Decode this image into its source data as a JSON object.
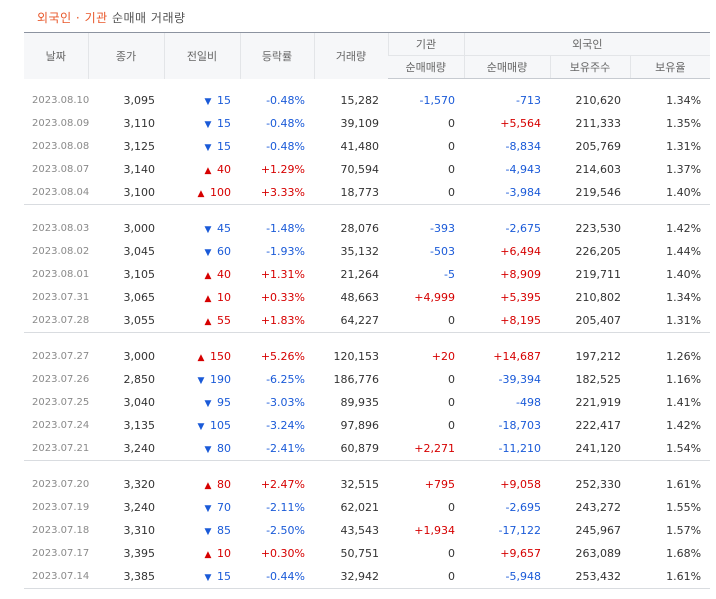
{
  "title": {
    "part1": "외국인 · 기관",
    "part2": " 순매매 거래량"
  },
  "headers": {
    "date": "날짜",
    "close": "종가",
    "change": "전일비",
    "rate": "등락률",
    "volume": "거래량",
    "inst_group": "기관",
    "foreign_group": "외국인",
    "inst_net": "순매매량",
    "foreign_net": "순매매량",
    "holdings": "보유주수",
    "ratio": "보유율"
  },
  "colors": {
    "up": "#d60000",
    "down": "#1a5ad8",
    "neutral": "#333333"
  },
  "groups": [
    [
      {
        "date": "2023.08.10",
        "close": "3,095",
        "dir": "down",
        "change": "15",
        "rate": "-0.48%",
        "volume": "15,282",
        "inst": "-1,570",
        "foreign": "-713",
        "holdings": "210,620",
        "ratio": "1.34%"
      },
      {
        "date": "2023.08.09",
        "close": "3,110",
        "dir": "down",
        "change": "15",
        "rate": "-0.48%",
        "volume": "39,109",
        "inst": "0",
        "foreign": "+5,564",
        "holdings": "211,333",
        "ratio": "1.35%"
      },
      {
        "date": "2023.08.08",
        "close": "3,125",
        "dir": "down",
        "change": "15",
        "rate": "-0.48%",
        "volume": "41,480",
        "inst": "0",
        "foreign": "-8,834",
        "holdings": "205,769",
        "ratio": "1.31%"
      },
      {
        "date": "2023.08.07",
        "close": "3,140",
        "dir": "up",
        "change": "40",
        "rate": "+1.29%",
        "volume": "70,594",
        "inst": "0",
        "foreign": "-4,943",
        "holdings": "214,603",
        "ratio": "1.37%"
      },
      {
        "date": "2023.08.04",
        "close": "3,100",
        "dir": "up",
        "change": "100",
        "rate": "+3.33%",
        "volume": "18,773",
        "inst": "0",
        "foreign": "-3,984",
        "holdings": "219,546",
        "ratio": "1.40%"
      }
    ],
    [
      {
        "date": "2023.08.03",
        "close": "3,000",
        "dir": "down",
        "change": "45",
        "rate": "-1.48%",
        "volume": "28,076",
        "inst": "-393",
        "foreign": "-2,675",
        "holdings": "223,530",
        "ratio": "1.42%"
      },
      {
        "date": "2023.08.02",
        "close": "3,045",
        "dir": "down",
        "change": "60",
        "rate": "-1.93%",
        "volume": "35,132",
        "inst": "-503",
        "foreign": "+6,494",
        "holdings": "226,205",
        "ratio": "1.44%"
      },
      {
        "date": "2023.08.01",
        "close": "3,105",
        "dir": "up",
        "change": "40",
        "rate": "+1.31%",
        "volume": "21,264",
        "inst": "-5",
        "foreign": "+8,909",
        "holdings": "219,711",
        "ratio": "1.40%"
      },
      {
        "date": "2023.07.31",
        "close": "3,065",
        "dir": "up",
        "change": "10",
        "rate": "+0.33%",
        "volume": "48,663",
        "inst": "+4,999",
        "foreign": "+5,395",
        "holdings": "210,802",
        "ratio": "1.34%"
      },
      {
        "date": "2023.07.28",
        "close": "3,055",
        "dir": "up",
        "change": "55",
        "rate": "+1.83%",
        "volume": "64,227",
        "inst": "0",
        "foreign": "+8,195",
        "holdings": "205,407",
        "ratio": "1.31%"
      }
    ],
    [
      {
        "date": "2023.07.27",
        "close": "3,000",
        "dir": "up",
        "change": "150",
        "rate": "+5.26%",
        "volume": "120,153",
        "inst": "+20",
        "foreign": "+14,687",
        "holdings": "197,212",
        "ratio": "1.26%"
      },
      {
        "date": "2023.07.26",
        "close": "2,850",
        "dir": "down",
        "change": "190",
        "rate": "-6.25%",
        "volume": "186,776",
        "inst": "0",
        "foreign": "-39,394",
        "holdings": "182,525",
        "ratio": "1.16%"
      },
      {
        "date": "2023.07.25",
        "close": "3,040",
        "dir": "down",
        "change": "95",
        "rate": "-3.03%",
        "volume": "89,935",
        "inst": "0",
        "foreign": "-498",
        "holdings": "221,919",
        "ratio": "1.41%"
      },
      {
        "date": "2023.07.24",
        "close": "3,135",
        "dir": "down",
        "change": "105",
        "rate": "-3.24%",
        "volume": "97,896",
        "inst": "0",
        "foreign": "-18,703",
        "holdings": "222,417",
        "ratio": "1.42%"
      },
      {
        "date": "2023.07.21",
        "close": "3,240",
        "dir": "down",
        "change": "80",
        "rate": "-2.41%",
        "volume": "60,879",
        "inst": "+2,271",
        "foreign": "-11,210",
        "holdings": "241,120",
        "ratio": "1.54%"
      }
    ],
    [
      {
        "date": "2023.07.20",
        "close": "3,320",
        "dir": "up",
        "change": "80",
        "rate": "+2.47%",
        "volume": "32,515",
        "inst": "+795",
        "foreign": "+9,058",
        "holdings": "252,330",
        "ratio": "1.61%"
      },
      {
        "date": "2023.07.19",
        "close": "3,240",
        "dir": "down",
        "change": "70",
        "rate": "-2.11%",
        "volume": "62,021",
        "inst": "0",
        "foreign": "-2,695",
        "holdings": "243,272",
        "ratio": "1.55%"
      },
      {
        "date": "2023.07.18",
        "close": "3,310",
        "dir": "down",
        "change": "85",
        "rate": "-2.50%",
        "volume": "43,543",
        "inst": "+1,934",
        "foreign": "-17,122",
        "holdings": "245,967",
        "ratio": "1.57%"
      },
      {
        "date": "2023.07.17",
        "close": "3,395",
        "dir": "up",
        "change": "10",
        "rate": "+0.30%",
        "volume": "50,751",
        "inst": "0",
        "foreign": "+9,657",
        "holdings": "263,089",
        "ratio": "1.68%"
      },
      {
        "date": "2023.07.14",
        "close": "3,385",
        "dir": "down",
        "change": "15",
        "rate": "-0.44%",
        "volume": "32,942",
        "inst": "0",
        "foreign": "-5,948",
        "holdings": "253,432",
        "ratio": "1.61%"
      }
    ]
  ]
}
